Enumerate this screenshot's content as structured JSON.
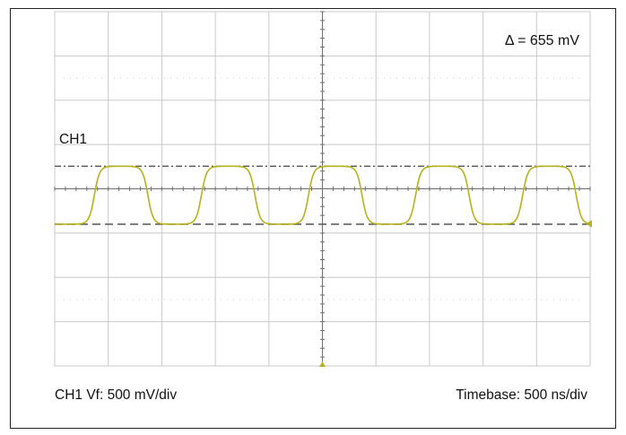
{
  "chart_data": {
    "type": "line",
    "title": "",
    "xlabel": "",
    "ylabel": "",
    "grid": true,
    "grid_divisions": {
      "x": 10,
      "y": 8
    },
    "x_unit": "ns",
    "y_unit": "mV",
    "x_per_div": 500,
    "y_per_div": 500,
    "xlim": [
      0,
      5000
    ],
    "ylim": [
      -2000,
      2000
    ],
    "series": [
      {
        "name": "CH1",
        "color": "#b8b11a",
        "waveform": "rounded-square",
        "period_ns": 1000,
        "high_mV": 255,
        "low_mV": -400,
        "x": [
          0,
          125,
          250,
          375,
          500,
          625,
          750,
          875,
          1000
        ],
        "y": [
          80,
          -250,
          -400,
          -280,
          90,
          255,
          255,
          230,
          80
        ]
      }
    ],
    "cursors": [
      {
        "style": "dash-dot",
        "value_mV": 255
      },
      {
        "style": "dashed",
        "value_mV": -400
      }
    ],
    "channel_label": "CH1",
    "delta_label": "Δ = 655 mV",
    "vf_label": "CH1 Vf: 500 mV/div",
    "timebase_label": "Timebase: 500 ns/div",
    "colors": {
      "grid": "#c8c8c8",
      "axis": "#6e6e6e",
      "cursor": "#555555",
      "marker": "#b8b11a"
    }
  }
}
